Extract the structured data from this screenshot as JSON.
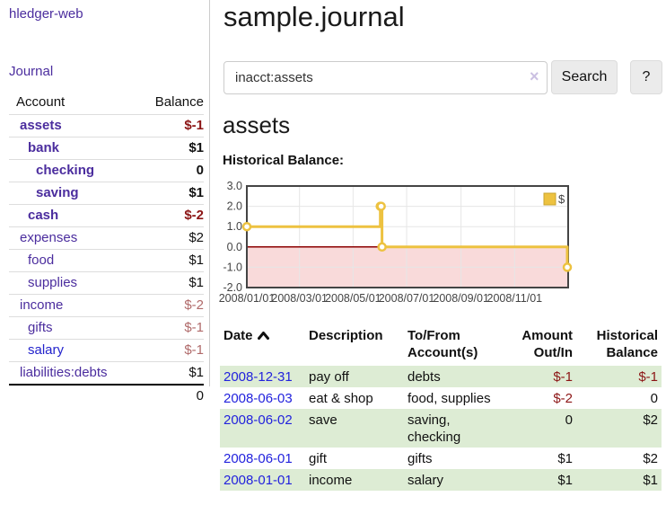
{
  "app": {
    "title": "hledger-web"
  },
  "colors": {
    "link_purple": "#4b2d9e",
    "link_blue": "#2222dd",
    "negative_red": "#8c1515",
    "negative_soft_red": "#b06a6a",
    "row_stripe_green": "#ddecd4",
    "button_gray": "#ebebeb",
    "series_yellow": "#EDC240",
    "negative_region_pink": "#f9dada",
    "zero_line_red": "#8b0000"
  },
  "sidebar": {
    "journal_link": "Journal",
    "accounts_table": {
      "col_account": "Account",
      "col_balance": "Balance",
      "rows": [
        {
          "label": "assets",
          "balance": "$-1",
          "level": 1,
          "bold": true,
          "tone": "neg"
        },
        {
          "label": "bank",
          "balance": "$1",
          "level": 2,
          "bold": true,
          "tone": ""
        },
        {
          "label": "checking",
          "balance": "0",
          "level": 3,
          "bold": true,
          "tone": ""
        },
        {
          "label": "saving",
          "balance": "$1",
          "level": 3,
          "bold": true,
          "tone": ""
        },
        {
          "label": "cash",
          "balance": "$-2",
          "level": 2,
          "bold": true,
          "tone": "neg"
        },
        {
          "label": "expenses",
          "balance": "$2",
          "level": 1,
          "bold": false,
          "tone": ""
        },
        {
          "label": "food",
          "balance": "$1",
          "level": 2,
          "bold": false,
          "tone": ""
        },
        {
          "label": "supplies",
          "balance": "$1",
          "level": 2,
          "bold": false,
          "tone": ""
        },
        {
          "label": "income",
          "balance": "$-2",
          "level": 1,
          "bold": false,
          "tone": "neg-soft"
        },
        {
          "label": "gifts",
          "balance": "$-1",
          "level": 2,
          "bold": false,
          "tone": "neg-soft"
        },
        {
          "label": "salary",
          "balance": "$-1",
          "level": 2,
          "bold": false,
          "tone": "neg-soft",
          "blue": true
        },
        {
          "label": "liabilities:debts",
          "balance": "$1",
          "level": 1,
          "bold": false,
          "tone": ""
        }
      ],
      "total": "0"
    }
  },
  "main": {
    "title": "sample.journal",
    "search": {
      "value": "inacct:assets",
      "clear_icon": "×",
      "search_button": "Search",
      "help_button": "?"
    },
    "account_heading": "assets",
    "chart_title": "Historical Balance:"
  },
  "chart_data": {
    "type": "line",
    "style": "step-after",
    "title": "Historical Balance:",
    "series": [
      {
        "name": "$",
        "color": "#EDC240",
        "points": [
          [
            "2008-01-01",
            1
          ],
          [
            "2008-06-01",
            2
          ],
          [
            "2008-06-02",
            2
          ],
          [
            "2008-06-03",
            0
          ],
          [
            "2008-12-31",
            -1
          ]
        ]
      }
    ],
    "x_range": [
      "2008-01-01",
      "2009-01-01"
    ],
    "x_tick_dates": [
      "2008-01-01",
      "2008-03-01",
      "2008-05-01",
      "2008-07-01",
      "2008-09-01",
      "2008-11-01"
    ],
    "x_ticks": [
      "2008/01/01",
      "2008/03/01",
      "2008/05/01",
      "2008/07/01",
      "2008/09/01",
      "2008/11/01"
    ],
    "y_ticks": [
      3.0,
      2.0,
      1.0,
      0.0,
      -1.0,
      -2.0
    ],
    "ylim": [
      -2,
      3
    ],
    "grid": true,
    "legend": {
      "label": "$",
      "position": "top-right"
    },
    "negative_region_color": "#f9dada",
    "zero_line_color": "#8b0000"
  },
  "register": {
    "headers": {
      "date": "Date",
      "description": "Description",
      "accounts": "To/From Account(s)",
      "amount": "Amount Out/In",
      "balance": "Historical Balance"
    },
    "rows": [
      {
        "date": "2008-12-31",
        "description": "pay off",
        "accounts": "debts",
        "amount": "$-1",
        "balance": "$-1",
        "amount_tone": "neg",
        "balance_tone": "neg",
        "shaded": true
      },
      {
        "date": "2008-06-03",
        "description": "eat & shop",
        "accounts": "food, supplies",
        "amount": "$-2",
        "balance": "0",
        "amount_tone": "neg",
        "balance_tone": "",
        "shaded": false
      },
      {
        "date": "2008-06-02",
        "description": "save",
        "accounts": "saving, checking",
        "amount": "0",
        "balance": "$2",
        "amount_tone": "",
        "balance_tone": "",
        "shaded": true
      },
      {
        "date": "2008-06-01",
        "description": "gift",
        "accounts": "gifts",
        "amount": "$1",
        "balance": "$2",
        "amount_tone": "",
        "balance_tone": "",
        "shaded": false
      },
      {
        "date": "2008-01-01",
        "description": "income",
        "accounts": "salary",
        "amount": "$1",
        "balance": "$1",
        "amount_tone": "",
        "balance_tone": "",
        "shaded": true
      }
    ]
  }
}
